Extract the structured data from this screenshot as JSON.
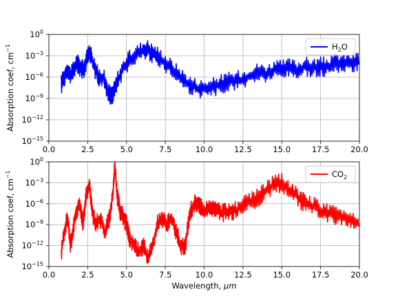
{
  "chart_data": [
    {
      "type": "line",
      "xlabel": "",
      "ylabel": "Absorption coef, cm",
      "ylabel_superscript": "−1",
      "xlim": [
        0,
        20
      ],
      "ylim": [
        1e-15,
        1
      ],
      "yscale": "log",
      "grid": true,
      "legend_position": "top-right",
      "x_ticks": [
        "0.0",
        "2.5",
        "5.0",
        "7.5",
        "10.0",
        "12.5",
        "15.0",
        "17.5",
        "20.0"
      ],
      "y_ticks": [
        {
          "base": "10",
          "exp": "0"
        },
        {
          "base": "10",
          "exp": "−3"
        },
        {
          "base": "10",
          "exp": "−6"
        },
        {
          "base": "10",
          "exp": "−9"
        },
        {
          "base": "10",
          "exp": "−12"
        },
        {
          "base": "10",
          "exp": "−15"
        }
      ],
      "series": [
        {
          "name_main": "H",
          "name_sub": "2",
          "name_tail": "O",
          "color": "#0000ff",
          "x": [
            0.8,
            1.0,
            1.2,
            1.4,
            1.6,
            1.8,
            2.0,
            2.2,
            2.4,
            2.6,
            2.8,
            3.0,
            3.2,
            3.5,
            3.8,
            4.0,
            4.2,
            4.5,
            5.0,
            5.5,
            6.0,
            6.3,
            6.6,
            7.0,
            7.5,
            8.0,
            8.5,
            9.0,
            9.5,
            10.0,
            10.5,
            11.0,
            11.5,
            12.0,
            12.5,
            13.0,
            13.5,
            14.0,
            14.5,
            15.0,
            15.5,
            16.0,
            16.5,
            17.0,
            17.5,
            18.0,
            18.5,
            19.0,
            19.5,
            20.0
          ],
          "y": [
            1e-07,
            1e-06,
            2e-05,
            1e-06,
            1e-05,
            0.0001,
            3e-05,
            1e-05,
            0.0001,
            0.01,
            0.0002,
            1e-05,
            1e-06,
            1e-06,
            1e-08,
            2e-09,
            1e-08,
            1e-06,
            0.0001,
            0.001,
            0.005,
            0.01,
            0.003,
            0.001,
            0.0001,
            1e-05,
            1e-06,
            1e-07,
            3e-08,
            2e-08,
            3e-08,
            1e-07,
            2e-07,
            3e-07,
            5e-07,
            2e-06,
            5e-06,
            3e-06,
            1e-05,
            1e-05,
            2e-05,
            1e-05,
            3e-05,
            2e-05,
            3e-05,
            3e-05,
            0.0001,
            0.0001,
            0.0001,
            0.0002
          ]
        }
      ]
    },
    {
      "type": "line",
      "xlabel": "Wavelength, ",
      "xlabel_unit": "μm",
      "ylabel": "Absorption coef, cm",
      "ylabel_superscript": "−1",
      "xlim": [
        0,
        20
      ],
      "ylim": [
        1e-15,
        1
      ],
      "yscale": "log",
      "grid": true,
      "legend_position": "top-right",
      "x_ticks": [
        "0.0",
        "2.5",
        "5.0",
        "7.5",
        "10.0",
        "12.5",
        "15.0",
        "17.5",
        "20.0"
      ],
      "y_ticks": [
        {
          "base": "10",
          "exp": "0"
        },
        {
          "base": "10",
          "exp": "−3"
        },
        {
          "base": "10",
          "exp": "−6"
        },
        {
          "base": "10",
          "exp": "−9"
        },
        {
          "base": "10",
          "exp": "−12"
        },
        {
          "base": "10",
          "exp": "−15"
        }
      ],
      "series": [
        {
          "name_main": "CO",
          "name_sub": "2",
          "name_tail": "",
          "color": "#ff0000",
          "x": [
            0.8,
            1.0,
            1.2,
            1.4,
            1.6,
            1.8,
            2.0,
            2.2,
            2.4,
            2.6,
            2.8,
            3.0,
            3.3,
            3.6,
            3.9,
            4.1,
            4.25,
            4.4,
            4.6,
            4.8,
            5.0,
            5.2,
            5.5,
            5.8,
            6.1,
            6.4,
            6.7,
            7.0,
            7.3,
            7.6,
            7.9,
            8.2,
            8.5,
            8.8,
            9.1,
            9.4,
            9.7,
            10.0,
            10.4,
            10.8,
            11.2,
            11.6,
            12.0,
            12.5,
            13.0,
            13.5,
            14.0,
            14.5,
            15.0,
            15.5,
            16.0,
            16.5,
            17.0,
            17.5,
            18.0,
            18.5,
            19.0,
            19.5,
            20.0
          ],
          "y": [
            1e-13,
            1e-10,
            1e-08,
            1e-12,
            1e-09,
            1e-07,
            1e-06,
            1e-09,
            1e-05,
            0.001,
            1e-07,
            1e-09,
            1e-08,
            1e-10,
            1e-08,
            1e-05,
            0.3,
            1e-05,
            1e-07,
            1e-08,
            1e-09,
            1e-11,
            1e-12,
            1e-13,
            1e-12,
            1e-14,
            1e-12,
            1e-09,
            1e-08,
            1e-09,
            1e-08,
            1e-10,
            1e-12,
            1e-12,
            1e-07,
            1e-06,
            5e-07,
            1e-07,
            3e-07,
            1e-07,
            5e-08,
            1e-07,
            1e-07,
            5e-07,
            2e-06,
            1e-05,
            0.0001,
            0.0005,
            0.001,
            0.0001,
            1e-05,
            1e-06,
            5e-07,
            1e-07,
            5e-08,
            2e-08,
            1e-08,
            5e-09,
            1e-09
          ]
        }
      ]
    }
  ]
}
